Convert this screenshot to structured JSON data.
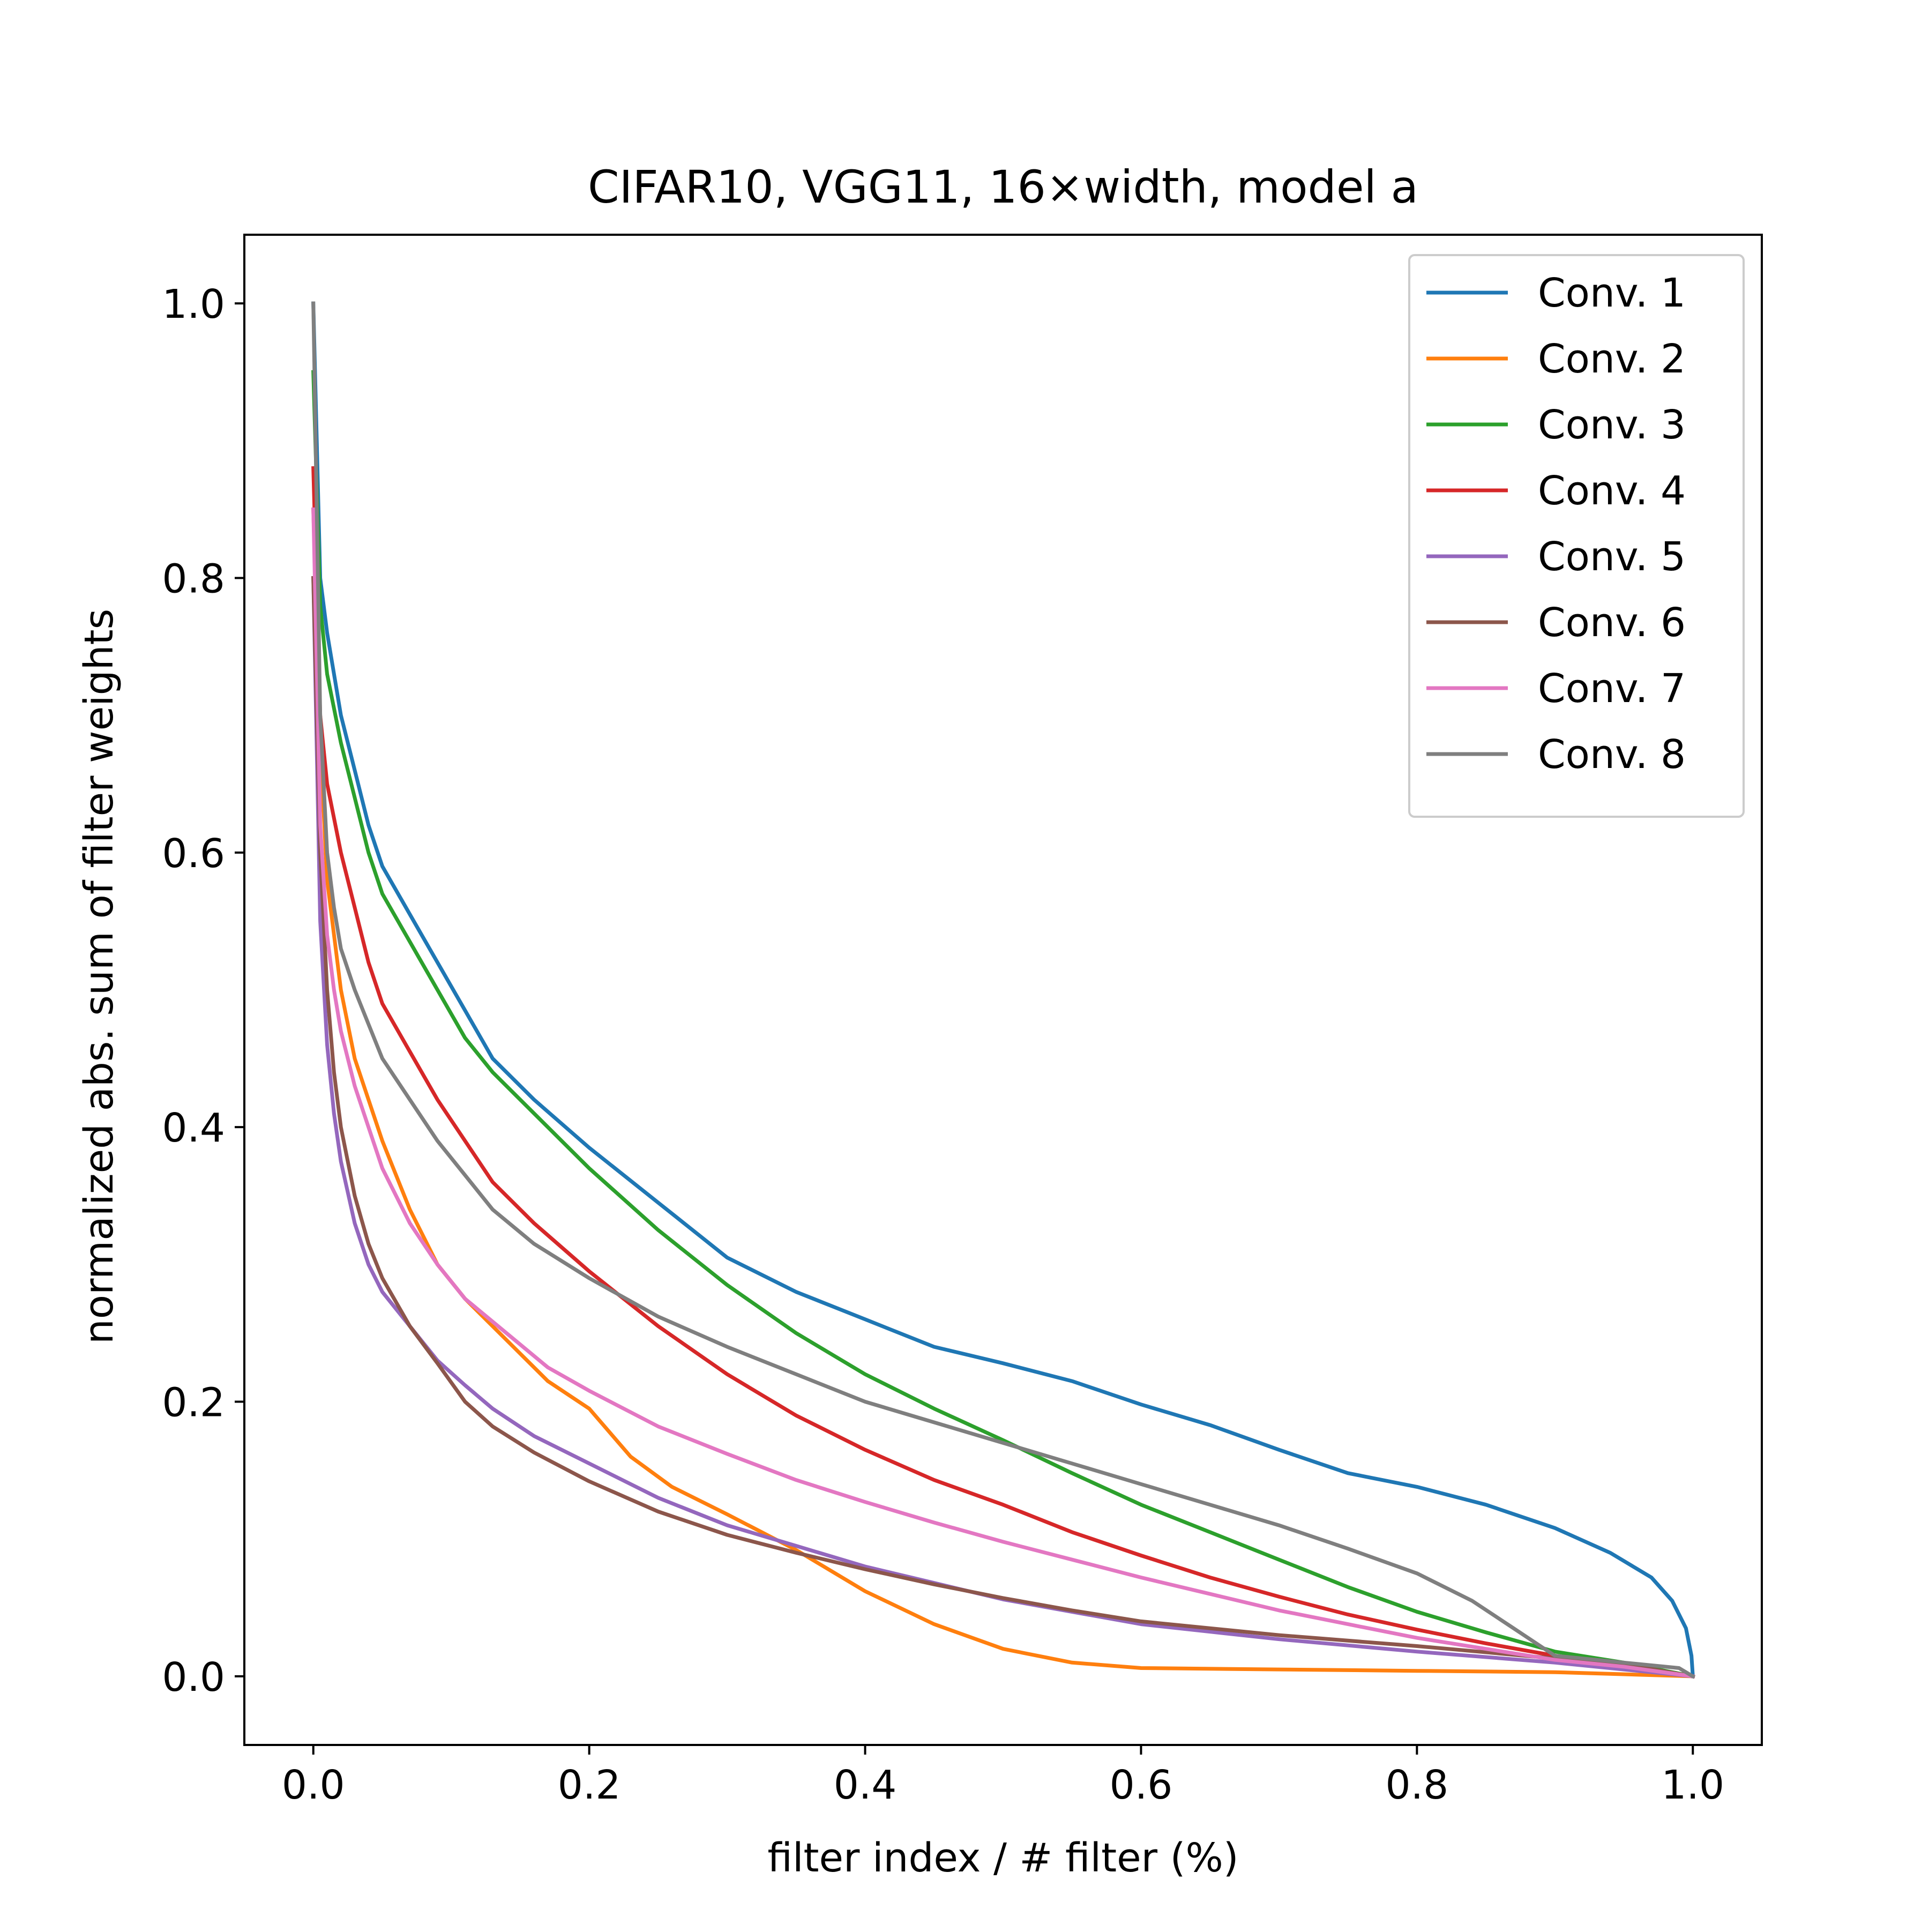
{
  "chart_data": {
    "type": "line",
    "title": "CIFAR10, VGG11, 16×width, model a",
    "xlabel": "filter index / # filter (%)",
    "ylabel": "normalized abs. sum of filter weights",
    "xlim": [
      -0.05,
      1.05
    ],
    "ylim": [
      -0.05,
      1.05
    ],
    "xticks": [
      "0.0",
      "0.2",
      "0.4",
      "0.6",
      "0.8",
      "1.0"
    ],
    "yticks": [
      "0.0",
      "0.2",
      "0.4",
      "0.6",
      "0.8",
      "1.0"
    ],
    "grid": false,
    "legend_position": "upper right",
    "series": [
      {
        "name": "Conv. 1",
        "color": "#1f77b4",
        "points": [
          [
            0,
            1.0
          ],
          [
            0.005,
            0.8
          ],
          [
            0.01,
            0.76
          ],
          [
            0.02,
            0.7
          ],
          [
            0.03,
            0.66
          ],
          [
            0.04,
            0.62
          ],
          [
            0.05,
            0.59
          ],
          [
            0.07,
            0.555
          ],
          [
            0.09,
            0.52
          ],
          [
            0.11,
            0.485
          ],
          [
            0.13,
            0.45
          ],
          [
            0.16,
            0.42
          ],
          [
            0.2,
            0.385
          ],
          [
            0.25,
            0.345
          ],
          [
            0.3,
            0.305
          ],
          [
            0.35,
            0.28
          ],
          [
            0.4,
            0.26
          ],
          [
            0.45,
            0.24
          ],
          [
            0.5,
            0.228
          ],
          [
            0.55,
            0.215
          ],
          [
            0.6,
            0.198
          ],
          [
            0.65,
            0.183
          ],
          [
            0.7,
            0.165
          ],
          [
            0.75,
            0.148
          ],
          [
            0.8,
            0.138
          ],
          [
            0.85,
            0.125
          ],
          [
            0.9,
            0.108
          ],
          [
            0.94,
            0.09
          ],
          [
            0.97,
            0.072
          ],
          [
            0.985,
            0.055
          ],
          [
            0.995,
            0.035
          ],
          [
            0.999,
            0.015
          ],
          [
            1.0,
            0.0
          ]
        ]
      },
      {
        "name": "Conv. 2",
        "color": "#ff7f0e",
        "points": [
          [
            0,
            0.85
          ],
          [
            0.005,
            0.68
          ],
          [
            0.01,
            0.58
          ],
          [
            0.02,
            0.5
          ],
          [
            0.03,
            0.45
          ],
          [
            0.04,
            0.42
          ],
          [
            0.05,
            0.39
          ],
          [
            0.07,
            0.34
          ],
          [
            0.09,
            0.3
          ],
          [
            0.11,
            0.275
          ],
          [
            0.14,
            0.245
          ],
          [
            0.17,
            0.215
          ],
          [
            0.2,
            0.195
          ],
          [
            0.23,
            0.16
          ],
          [
            0.26,
            0.138
          ],
          [
            0.3,
            0.118
          ],
          [
            0.35,
            0.092
          ],
          [
            0.4,
            0.062
          ],
          [
            0.45,
            0.038
          ],
          [
            0.5,
            0.02
          ],
          [
            0.55,
            0.01
          ],
          [
            0.6,
            0.006
          ],
          [
            0.7,
            0.005
          ],
          [
            0.8,
            0.004
          ],
          [
            0.9,
            0.003
          ],
          [
            1.0,
            0.0
          ]
        ]
      },
      {
        "name": "Conv. 3",
        "color": "#2ca02c",
        "points": [
          [
            0,
            0.95
          ],
          [
            0.005,
            0.78
          ],
          [
            0.01,
            0.73
          ],
          [
            0.02,
            0.68
          ],
          [
            0.03,
            0.64
          ],
          [
            0.04,
            0.6
          ],
          [
            0.05,
            0.57
          ],
          [
            0.07,
            0.535
          ],
          [
            0.09,
            0.5
          ],
          [
            0.11,
            0.465
          ],
          [
            0.13,
            0.44
          ],
          [
            0.16,
            0.41
          ],
          [
            0.2,
            0.37
          ],
          [
            0.25,
            0.325
          ],
          [
            0.3,
            0.285
          ],
          [
            0.35,
            0.25
          ],
          [
            0.4,
            0.22
          ],
          [
            0.45,
            0.195
          ],
          [
            0.5,
            0.172
          ],
          [
            0.55,
            0.148
          ],
          [
            0.6,
            0.125
          ],
          [
            0.65,
            0.105
          ],
          [
            0.7,
            0.085
          ],
          [
            0.75,
            0.065
          ],
          [
            0.8,
            0.047
          ],
          [
            0.85,
            0.032
          ],
          [
            0.9,
            0.018
          ],
          [
            0.95,
            0.01
          ],
          [
            1.0,
            0.0
          ]
        ]
      },
      {
        "name": "Conv. 4",
        "color": "#d62728",
        "points": [
          [
            0,
            0.88
          ],
          [
            0.005,
            0.7
          ],
          [
            0.01,
            0.65
          ],
          [
            0.02,
            0.6
          ],
          [
            0.03,
            0.56
          ],
          [
            0.04,
            0.52
          ],
          [
            0.05,
            0.49
          ],
          [
            0.07,
            0.455
          ],
          [
            0.09,
            0.42
          ],
          [
            0.11,
            0.39
          ],
          [
            0.13,
            0.36
          ],
          [
            0.16,
            0.33
          ],
          [
            0.2,
            0.295
          ],
          [
            0.25,
            0.255
          ],
          [
            0.3,
            0.22
          ],
          [
            0.35,
            0.19
          ],
          [
            0.4,
            0.165
          ],
          [
            0.45,
            0.143
          ],
          [
            0.5,
            0.125
          ],
          [
            0.55,
            0.105
          ],
          [
            0.6,
            0.088
          ],
          [
            0.65,
            0.072
          ],
          [
            0.7,
            0.058
          ],
          [
            0.75,
            0.045
          ],
          [
            0.8,
            0.034
          ],
          [
            0.85,
            0.024
          ],
          [
            0.9,
            0.015
          ],
          [
            0.95,
            0.008
          ],
          [
            1.0,
            0.0
          ]
        ]
      },
      {
        "name": "Conv. 5",
        "color": "#9467bd",
        "points": [
          [
            0,
            0.8
          ],
          [
            0.005,
            0.55
          ],
          [
            0.01,
            0.46
          ],
          [
            0.015,
            0.41
          ],
          [
            0.02,
            0.375
          ],
          [
            0.03,
            0.33
          ],
          [
            0.04,
            0.3
          ],
          [
            0.05,
            0.28
          ],
          [
            0.07,
            0.255
          ],
          [
            0.09,
            0.23
          ],
          [
            0.11,
            0.212
          ],
          [
            0.13,
            0.195
          ],
          [
            0.16,
            0.175
          ],
          [
            0.2,
            0.155
          ],
          [
            0.25,
            0.13
          ],
          [
            0.3,
            0.11
          ],
          [
            0.35,
            0.095
          ],
          [
            0.4,
            0.08
          ],
          [
            0.45,
            0.068
          ],
          [
            0.5,
            0.056
          ],
          [
            0.55,
            0.047
          ],
          [
            0.6,
            0.038
          ],
          [
            0.7,
            0.027
          ],
          [
            0.8,
            0.018
          ],
          [
            0.9,
            0.01
          ],
          [
            1.0,
            0.0
          ]
        ]
      },
      {
        "name": "Conv. 6",
        "color": "#8c564b",
        "points": [
          [
            0,
            0.8
          ],
          [
            0.005,
            0.6
          ],
          [
            0.01,
            0.5
          ],
          [
            0.015,
            0.44
          ],
          [
            0.02,
            0.4
          ],
          [
            0.03,
            0.35
          ],
          [
            0.04,
            0.315
          ],
          [
            0.05,
            0.29
          ],
          [
            0.07,
            0.255
          ],
          [
            0.09,
            0.228
          ],
          [
            0.11,
            0.2
          ],
          [
            0.13,
            0.182
          ],
          [
            0.16,
            0.163
          ],
          [
            0.2,
            0.142
          ],
          [
            0.25,
            0.12
          ],
          [
            0.3,
            0.103
          ],
          [
            0.35,
            0.09
          ],
          [
            0.4,
            0.078
          ],
          [
            0.45,
            0.067
          ],
          [
            0.5,
            0.057
          ],
          [
            0.55,
            0.048
          ],
          [
            0.6,
            0.04
          ],
          [
            0.7,
            0.03
          ],
          [
            0.8,
            0.022
          ],
          [
            0.9,
            0.013
          ],
          [
            0.95,
            0.009
          ],
          [
            1.0,
            0.0
          ]
        ]
      },
      {
        "name": "Conv. 7",
        "color": "#e377c2",
        "points": [
          [
            0,
            0.85
          ],
          [
            0.005,
            0.62
          ],
          [
            0.01,
            0.54
          ],
          [
            0.015,
            0.5
          ],
          [
            0.02,
            0.47
          ],
          [
            0.03,
            0.43
          ],
          [
            0.04,
            0.4
          ],
          [
            0.05,
            0.37
          ],
          [
            0.07,
            0.33
          ],
          [
            0.09,
            0.3
          ],
          [
            0.11,
            0.275
          ],
          [
            0.14,
            0.25
          ],
          [
            0.17,
            0.225
          ],
          [
            0.2,
            0.208
          ],
          [
            0.25,
            0.182
          ],
          [
            0.3,
            0.162
          ],
          [
            0.35,
            0.143
          ],
          [
            0.4,
            0.127
          ],
          [
            0.45,
            0.112
          ],
          [
            0.5,
            0.098
          ],
          [
            0.55,
            0.085
          ],
          [
            0.6,
            0.072
          ],
          [
            0.65,
            0.06
          ],
          [
            0.7,
            0.048
          ],
          [
            0.75,
            0.038
          ],
          [
            0.8,
            0.028
          ],
          [
            0.85,
            0.02
          ],
          [
            0.9,
            0.012
          ],
          [
            0.95,
            0.007
          ],
          [
            1.0,
            0.0
          ]
        ]
      },
      {
        "name": "Conv. 8",
        "color": "#7f7f7f",
        "points": [
          [
            0,
            1.0
          ],
          [
            0.005,
            0.7
          ],
          [
            0.01,
            0.6
          ],
          [
            0.015,
            0.56
          ],
          [
            0.02,
            0.53
          ],
          [
            0.03,
            0.5
          ],
          [
            0.04,
            0.475
          ],
          [
            0.05,
            0.45
          ],
          [
            0.07,
            0.42
          ],
          [
            0.09,
            0.39
          ],
          [
            0.11,
            0.365
          ],
          [
            0.13,
            0.34
          ],
          [
            0.16,
            0.315
          ],
          [
            0.2,
            0.29
          ],
          [
            0.25,
            0.262
          ],
          [
            0.3,
            0.24
          ],
          [
            0.35,
            0.22
          ],
          [
            0.4,
            0.2
          ],
          [
            0.45,
            0.185
          ],
          [
            0.5,
            0.17
          ],
          [
            0.55,
            0.155
          ],
          [
            0.6,
            0.14
          ],
          [
            0.65,
            0.125
          ],
          [
            0.7,
            0.11
          ],
          [
            0.75,
            0.093
          ],
          [
            0.8,
            0.075
          ],
          [
            0.84,
            0.055
          ],
          [
            0.87,
            0.035
          ],
          [
            0.9,
            0.015
          ],
          [
            0.95,
            0.01
          ],
          [
            0.99,
            0.006
          ],
          [
            1.0,
            0.0
          ]
        ]
      }
    ]
  }
}
